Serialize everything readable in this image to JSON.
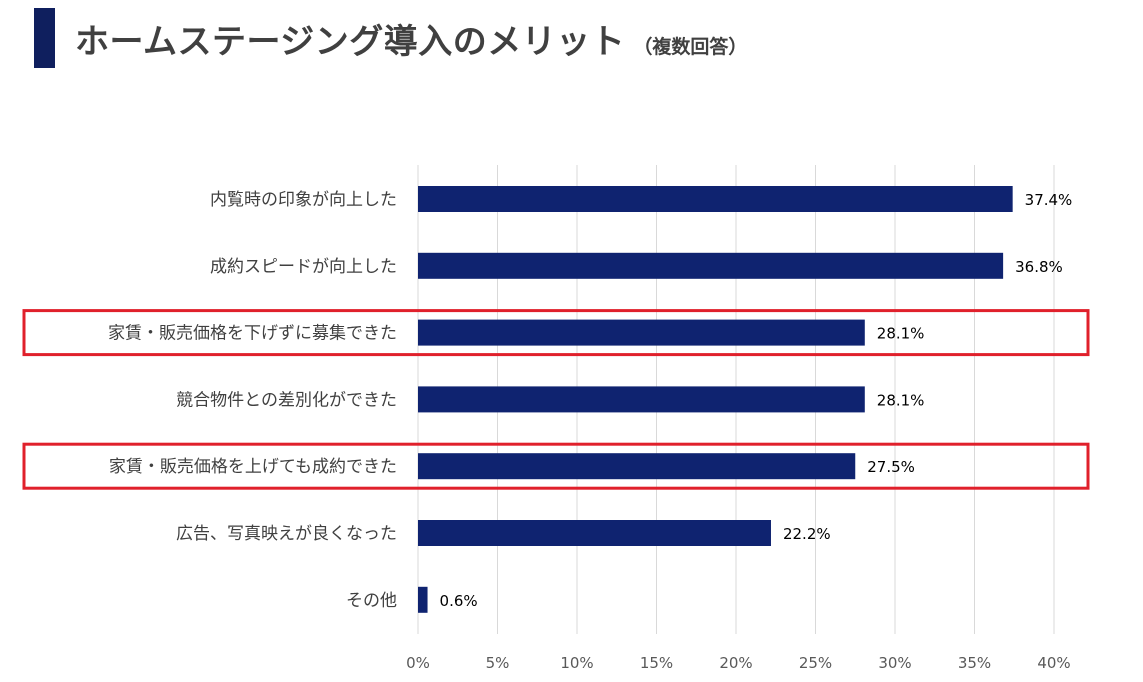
{
  "header": {
    "title": "ホームステージング導入のメリット",
    "subtitle": "（複数回答）"
  },
  "colors": {
    "bar": "#0f2370",
    "title_accent": "#0f1f5e",
    "highlight_box": "#e0202b",
    "gridline": "#d9d9d9"
  },
  "chart_data": {
    "type": "bar",
    "orientation": "horizontal",
    "categories": [
      "内覧時の印象が向上した",
      "成約スピードが向上した",
      "家賃・販売価格を下げずに募集できた",
      "競合物件との差別化ができた",
      "家賃・販売価格を上げても成約できた",
      "広告、写真映えが良くなった",
      "その他"
    ],
    "values": [
      37.4,
      36.8,
      28.1,
      28.1,
      27.5,
      22.2,
      0.6
    ],
    "value_labels": [
      "37.4%",
      "36.8%",
      "28.1%",
      "28.1%",
      "27.5%",
      "22.2%",
      "0.6%"
    ],
    "xlim": [
      0,
      40
    ],
    "ticks": [
      0,
      5,
      10,
      15,
      20,
      25,
      30,
      35,
      40
    ],
    "tick_labels": [
      "0%",
      "5%",
      "10%",
      "15%",
      "20%",
      "25%",
      "30%",
      "35%",
      "40%"
    ],
    "grid": true,
    "highlighted_categories": [
      2,
      4
    ]
  }
}
